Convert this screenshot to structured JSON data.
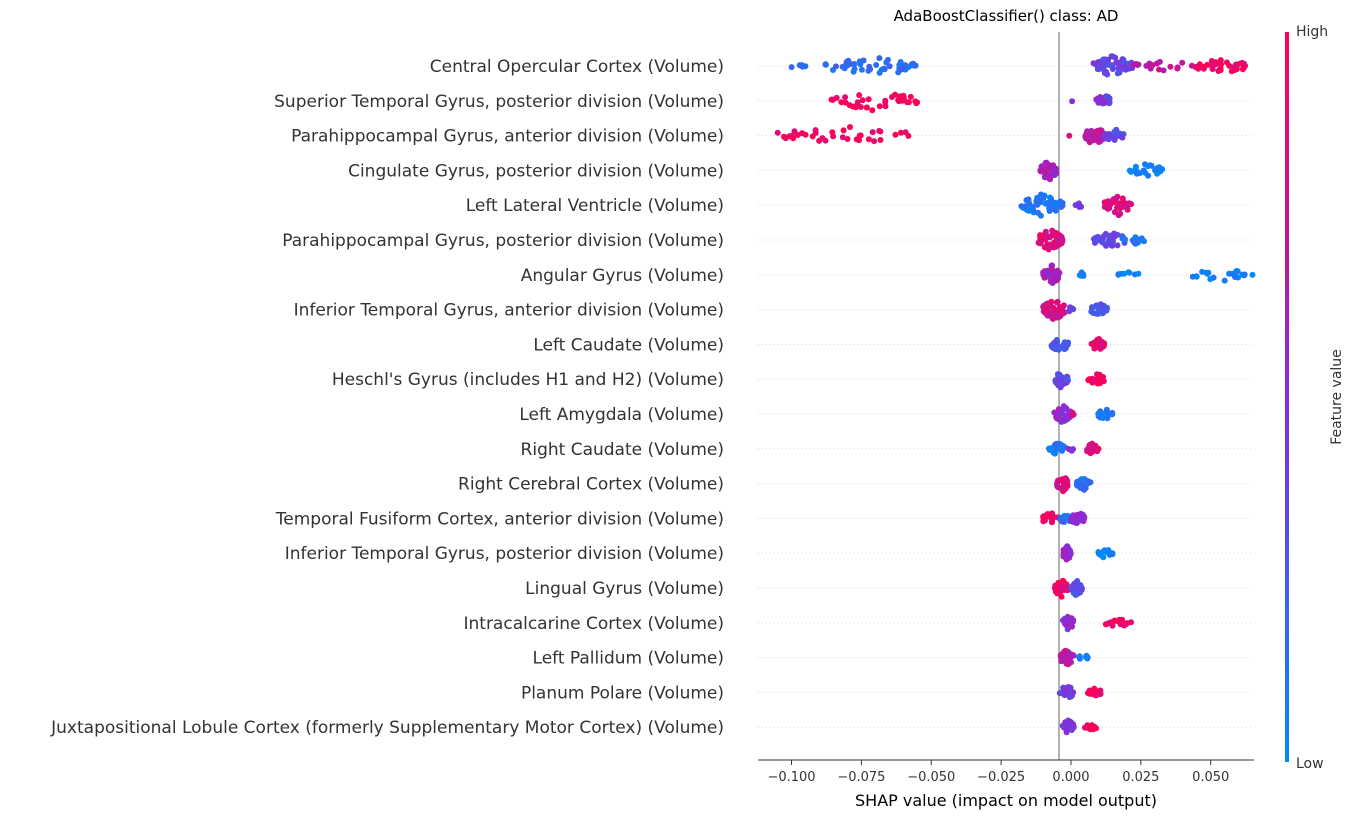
{
  "chart_data": {
    "type": "scatter",
    "subtype": "shap-beeswarm",
    "title": "AdaBoostClassifier() class: AD",
    "xlabel": "SHAP value (impact on model output)",
    "xlim": [
      -0.112,
      0.0655
    ],
    "xticks": [
      -0.1,
      -0.075,
      -0.05,
      -0.025,
      0.0,
      0.025,
      0.05
    ],
    "xtick_labels": [
      "−0.100",
      "−0.075",
      "−0.050",
      "−0.025",
      "0.000",
      "0.025",
      "0.050"
    ],
    "colorbar": {
      "label": "Feature value",
      "high_label": "High",
      "low_label": "Low",
      "high_color": "#ff0052",
      "mid_color": "#8a2bd8",
      "low_color": "#008bfb"
    },
    "grid": "dotted-horizontal",
    "features": [
      {
        "name": "Central Opercular Cortex (Volume)",
        "clusters": [
          [
            -0.101,
            -0.095,
            0.15,
            5
          ],
          [
            -0.088,
            -0.055,
            0.15,
            45
          ],
          [
            -0.058,
            -0.055,
            0.2,
            4
          ],
          [
            0.008,
            0.022,
            0.35,
            60
          ],
          [
            0.022,
            0.045,
            0.75,
            18
          ],
          [
            0.045,
            0.063,
            0.95,
            32
          ]
        ]
      },
      {
        "name": "Superior Temporal Gyrus, posterior division (Volume)",
        "clusters": [
          [
            -0.086,
            -0.055,
            0.95,
            38
          ],
          [
            -0.001,
            0.001,
            0.55,
            1
          ],
          [
            0.011,
            0.014,
            0.3,
            25
          ],
          [
            0.009,
            0.012,
            0.55,
            12
          ]
        ]
      },
      {
        "name": "Parahippocampal Gyrus, anterior division (Volume)",
        "clusters": [
          [
            -0.105,
            -0.055,
            0.95,
            36
          ],
          [
            -0.001,
            0.001,
            0.85,
            1
          ],
          [
            0.005,
            0.012,
            0.7,
            40
          ],
          [
            0.012,
            0.019,
            0.35,
            25
          ]
        ]
      },
      {
        "name": "Cingulate Gyrus, posterior division (Volume)",
        "clusters": [
          [
            -0.011,
            -0.005,
            0.6,
            50
          ],
          [
            0.021,
            0.033,
            0.05,
            25
          ]
        ]
      },
      {
        "name": "Left Lateral Ventricle (Volume)",
        "clusters": [
          [
            -0.018,
            -0.003,
            0.1,
            55
          ],
          [
            0.001,
            0.008,
            0.4,
            6
          ],
          [
            0.012,
            0.022,
            0.85,
            40
          ]
        ]
      },
      {
        "name": "Parahippocampal Gyrus, posterior division (Volume)",
        "clusters": [
          [
            -0.012,
            -0.003,
            0.85,
            55
          ],
          [
            0.008,
            0.02,
            0.35,
            30
          ],
          [
            0.018,
            0.027,
            0.1,
            15
          ]
        ]
      },
      {
        "name": "Angular Gyrus (Volume)",
        "clusters": [
          [
            -0.01,
            -0.004,
            0.6,
            40
          ],
          [
            0.002,
            0.005,
            0.1,
            6
          ],
          [
            0.016,
            0.025,
            0.05,
            8
          ],
          [
            0.043,
            0.065,
            0.05,
            22
          ]
        ]
      },
      {
        "name": "Inferior Temporal Gyrus, anterior division (Volume)",
        "clusters": [
          [
            -0.01,
            -0.002,
            0.8,
            45
          ],
          [
            -0.001,
            0.001,
            0.4,
            8
          ],
          [
            0.007,
            0.013,
            0.25,
            25
          ]
        ]
      },
      {
        "name": "Left Caudate (Volume)",
        "clusters": [
          [
            -0.007,
            -0.001,
            0.25,
            30
          ],
          [
            0.007,
            0.012,
            0.9,
            22
          ]
        ]
      },
      {
        "name": "Heschl's Gyrus (includes H1 and H2) (Volume)",
        "clusters": [
          [
            -0.006,
            -0.001,
            0.35,
            35
          ],
          [
            0.006,
            0.012,
            0.95,
            22
          ]
        ]
      },
      {
        "name": "Left Amygdala (Volume)",
        "clusters": [
          [
            -0.006,
            0.0,
            0.55,
            35
          ],
          [
            0.0,
            0.001,
            0.85,
            3
          ],
          [
            0.009,
            0.015,
            0.1,
            20
          ]
        ]
      },
      {
        "name": "Right Caudate (Volume)",
        "clusters": [
          [
            -0.008,
            -0.002,
            0.1,
            22
          ],
          [
            -0.001,
            0.001,
            0.5,
            4
          ],
          [
            0.005,
            0.01,
            0.85,
            20
          ]
        ]
      },
      {
        "name": "Right Cerebral Cortex (Volume)",
        "clusters": [
          [
            -0.005,
            -0.001,
            0.85,
            35
          ],
          [
            0.002,
            0.007,
            0.15,
            25
          ]
        ]
      },
      {
        "name": "Temporal Fusiform Cortex, anterior division (Volume)",
        "clusters": [
          [
            -0.011,
            -0.004,
            0.95,
            20
          ],
          [
            -0.004,
            0.0,
            0.15,
            20
          ],
          [
            0.0,
            0.005,
            0.55,
            30
          ]
        ]
      },
      {
        "name": "Inferior Temporal Gyrus, posterior division (Volume)",
        "clusters": [
          [
            -0.003,
            0.0,
            0.55,
            30
          ],
          [
            0.009,
            0.015,
            0.05,
            14
          ]
        ]
      },
      {
        "name": "Lingual Gyrus (Volume)",
        "clusters": [
          [
            -0.006,
            -0.001,
            0.9,
            35
          ],
          [
            0.0,
            0.004,
            0.3,
            30
          ]
        ]
      },
      {
        "name": "Intracalcarine Cortex (Volume)",
        "clusters": [
          [
            -0.003,
            0.001,
            0.5,
            30
          ],
          [
            0.012,
            0.022,
            0.95,
            18
          ]
        ]
      },
      {
        "name": "Left Pallidum (Volume)",
        "clusters": [
          [
            -0.004,
            0.001,
            0.7,
            30
          ],
          [
            0.003,
            0.006,
            0.1,
            10
          ]
        ]
      },
      {
        "name": "Planum Polare (Volume)",
        "clusters": [
          [
            -0.004,
            0.001,
            0.4,
            30
          ],
          [
            0.006,
            0.011,
            0.95,
            14
          ]
        ]
      },
      {
        "name": "Juxtapositional Lobule Cortex (formerly Supplementary Motor Cortex) (Volume)",
        "clusters": [
          [
            -0.003,
            0.001,
            0.45,
            30
          ],
          [
            0.005,
            0.009,
            0.95,
            12
          ]
        ]
      }
    ]
  }
}
